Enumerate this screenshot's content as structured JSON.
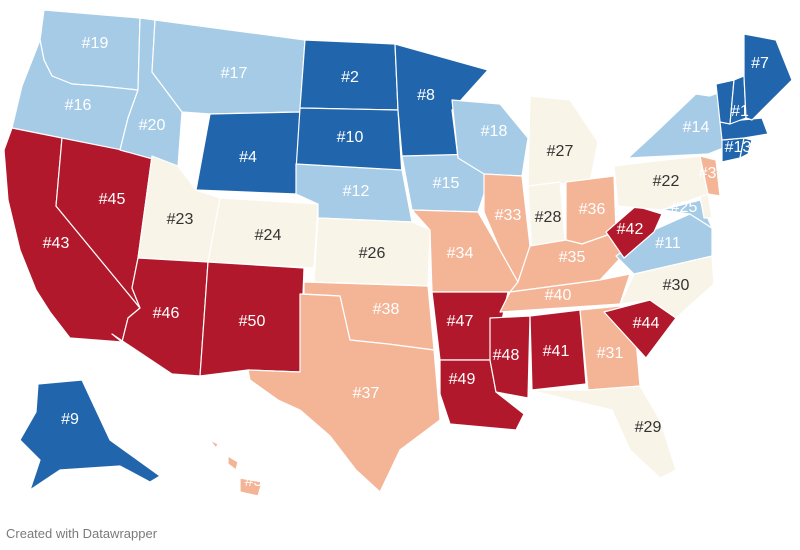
{
  "credit": "Created with Datawrapper",
  "legend": {
    "colors": {
      "tier1": "#2166ac",
      "tier2": "#a6cbe6",
      "tier3": "#f8f4e8",
      "tier4": "#f4b496",
      "tier5": "#b2182b"
    }
  },
  "states": [
    {
      "id": "WA",
      "label": "#19",
      "tier": "tier2"
    },
    {
      "id": "OR",
      "label": "#16",
      "tier": "tier2"
    },
    {
      "id": "CA",
      "label": "#43",
      "tier": "tier5"
    },
    {
      "id": "NV",
      "label": "#45",
      "tier": "tier5"
    },
    {
      "id": "ID",
      "label": "#20",
      "tier": "tier2"
    },
    {
      "id": "MT",
      "label": "#17",
      "tier": "tier2"
    },
    {
      "id": "WY",
      "label": "#4",
      "tier": "tier1"
    },
    {
      "id": "UT",
      "label": "#23",
      "tier": "tier3"
    },
    {
      "id": "CO",
      "label": "#24",
      "tier": "tier3"
    },
    {
      "id": "AZ",
      "label": "#46",
      "tier": "tier5"
    },
    {
      "id": "NM",
      "label": "#50",
      "tier": "tier5"
    },
    {
      "id": "ND",
      "label": "#2",
      "tier": "tier1"
    },
    {
      "id": "SD",
      "label": "#10",
      "tier": "tier1"
    },
    {
      "id": "NE",
      "label": "#12",
      "tier": "tier2"
    },
    {
      "id": "KS",
      "label": "#26",
      "tier": "tier3"
    },
    {
      "id": "OK",
      "label": "#38",
      "tier": "tier4"
    },
    {
      "id": "TX",
      "label": "#37",
      "tier": "tier4"
    },
    {
      "id": "MN",
      "label": "#8",
      "tier": "tier1"
    },
    {
      "id": "IA",
      "label": "#15",
      "tier": "tier2"
    },
    {
      "id": "MO",
      "label": "#34",
      "tier": "tier4"
    },
    {
      "id": "AR",
      "label": "#47",
      "tier": "tier5"
    },
    {
      "id": "LA",
      "label": "#49",
      "tier": "tier5"
    },
    {
      "id": "WI",
      "label": "#18",
      "tier": "tier2"
    },
    {
      "id": "IL",
      "label": "#33",
      "tier": "tier4"
    },
    {
      "id": "MI",
      "label": "#27",
      "tier": "tier3"
    },
    {
      "id": "IN",
      "label": "#28",
      "tier": "tier3"
    },
    {
      "id": "OH",
      "label": "#36",
      "tier": "tier4"
    },
    {
      "id": "KY",
      "label": "#35",
      "tier": "tier4"
    },
    {
      "id": "TN",
      "label": "#40",
      "tier": "tier4"
    },
    {
      "id": "MS",
      "label": "#48",
      "tier": "tier5"
    },
    {
      "id": "AL",
      "label": "#41",
      "tier": "tier5"
    },
    {
      "id": "GA",
      "label": "#31",
      "tier": "tier4"
    },
    {
      "id": "FL",
      "label": "#29",
      "tier": "tier3"
    },
    {
      "id": "SC",
      "label": "#44",
      "tier": "tier5"
    },
    {
      "id": "NC",
      "label": "#30",
      "tier": "tier3"
    },
    {
      "id": "VA",
      "label": "#11",
      "tier": "tier2"
    },
    {
      "id": "WV",
      "label": "#42",
      "tier": "tier5"
    },
    {
      "id": "MD",
      "label": "#25",
      "tier": "tier2"
    },
    {
      "id": "DE",
      "label": "",
      "tier": "tier3"
    },
    {
      "id": "PA",
      "label": "#22",
      "tier": "tier3"
    },
    {
      "id": "NJ",
      "label": "#32",
      "tier": "tier4"
    },
    {
      "id": "NY",
      "label": "#14",
      "tier": "tier2"
    },
    {
      "id": "CT",
      "label": "#13",
      "tier": "tier1"
    },
    {
      "id": "RI",
      "label": "",
      "tier": "tier1"
    },
    {
      "id": "MA",
      "label": "",
      "tier": "tier1"
    },
    {
      "id": "VT",
      "label": "",
      "tier": "tier1"
    },
    {
      "id": "NH",
      "label": "#1",
      "tier": "tier1"
    },
    {
      "id": "ME",
      "label": "#7",
      "tier": "tier1"
    },
    {
      "id": "AK",
      "label": "#9",
      "tier": "tier1"
    },
    {
      "id": "HI",
      "label": "#39",
      "tier": "tier4"
    }
  ]
}
